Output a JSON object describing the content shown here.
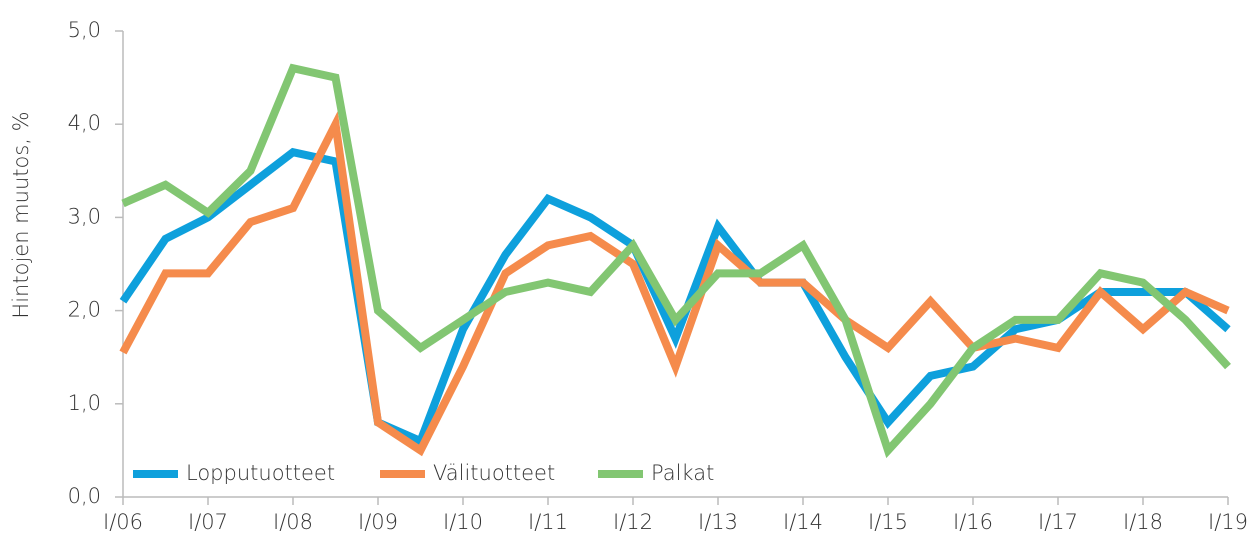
{
  "chart_data": {
    "type": "line",
    "y_label": "Hintojen muutos, %",
    "categories": [
      "I/06",
      null,
      "I/07",
      null,
      "I/08",
      null,
      "I/09",
      null,
      "I/10",
      null,
      "I/11",
      null,
      "I/12",
      null,
      "I/13",
      null,
      "I/14",
      null,
      "I/15",
      null,
      "I/16",
      null,
      "I/17",
      null,
      "I/18",
      null,
      "I/19"
    ],
    "series": [
      {
        "name": "Lopputuotteet",
        "color": "#0ea0dc",
        "values": [
          2.1,
          2.77,
          3.0,
          3.35,
          3.7,
          3.6,
          0.8,
          0.6,
          1.8,
          2.6,
          3.2,
          3.0,
          2.7,
          1.7,
          2.9,
          2.3,
          2.3,
          1.5,
          0.8,
          1.3,
          1.4,
          1.8,
          1.9,
          2.2,
          2.2,
          2.2,
          1.8
        ]
      },
      {
        "name": "Välituotteet",
        "color": "#f58b4c",
        "values": [
          1.55,
          2.4,
          2.4,
          2.95,
          3.1,
          4.0,
          0.8,
          0.5,
          1.4,
          2.4,
          2.7,
          2.8,
          2.5,
          1.4,
          2.7,
          2.3,
          2.3,
          1.9,
          1.6,
          2.1,
          1.6,
          1.7,
          1.6,
          2.2,
          1.8,
          2.2,
          2.0
        ]
      },
      {
        "name": "Palkat",
        "color": "#82c672",
        "values": [
          3.15,
          3.35,
          3.05,
          3.5,
          4.6,
          4.5,
          2.0,
          1.6,
          1.9,
          2.2,
          2.3,
          2.2,
          2.7,
          1.9,
          2.4,
          2.4,
          2.7,
          1.9,
          0.5,
          1.0,
          1.6,
          1.9,
          1.9,
          2.4,
          2.3,
          1.9,
          1.4
        ]
      }
    ],
    "ylim": [
      0,
      5
    ],
    "yticks": [
      {
        "value": 0,
        "label": "0,0"
      },
      {
        "value": 1,
        "label": "1,0"
      },
      {
        "value": 2,
        "label": "2,0"
      },
      {
        "value": 3,
        "label": "3,0"
      },
      {
        "value": 4,
        "label": "4,0"
      },
      {
        "value": 5,
        "label": "5,0"
      }
    ],
    "grid": false,
    "legend": "lower left"
  }
}
